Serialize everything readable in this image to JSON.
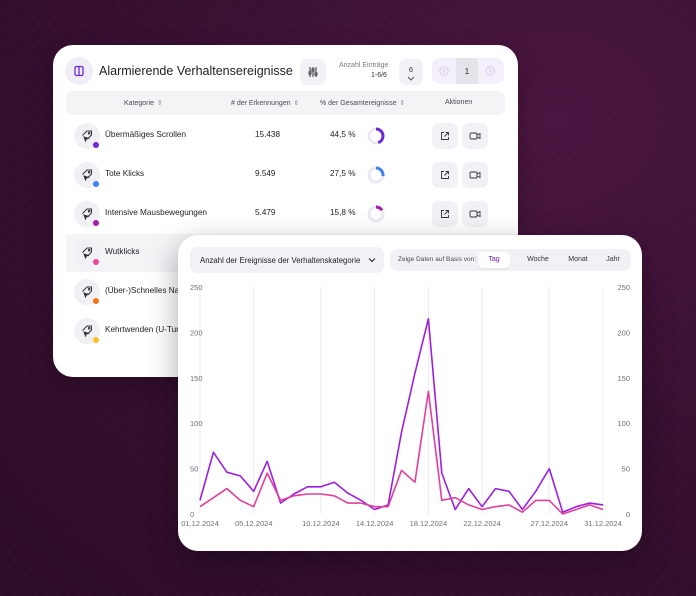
{
  "table": {
    "title": "Alarmierende Verhaltensereignisse",
    "entries_label": "Anzahl Einträge",
    "entries_range": "1-6/6",
    "page_size": "6",
    "current_page": "1",
    "columns": [
      "Kategorie",
      "# der Erkennungen",
      "% der Gesamtereignisse",
      "Aktionen"
    ],
    "rows": [
      {
        "label": "Übermäßiges Scrollen",
        "count": "15.438",
        "pct": "44,5 %",
        "ratio": 0.445,
        "color": "#6d28d9"
      },
      {
        "label": "Tote Klicks",
        "count": "9.549",
        "pct": "27,5 %",
        "ratio": 0.275,
        "color": "#3b82f6"
      },
      {
        "label": "Intensive Mausbewegungen",
        "count": "5.479",
        "pct": "15,8 %",
        "ratio": 0.158,
        "color": "#a21caf"
      },
      {
        "label": "Wutklicks",
        "count": "",
        "pct": "",
        "ratio": 0,
        "color": "#ec4899"
      },
      {
        "label": "(Über-)Schnelles Navigieren",
        "count": "",
        "pct": "",
        "ratio": 0,
        "color": "#f97316"
      },
      {
        "label": "Kehrtwenden (U-Turns)",
        "count": "",
        "pct": "",
        "ratio": 0,
        "color": "#fbbf24"
      }
    ],
    "icons": {
      "logo": "logo-icon",
      "filter": "sliders-icon",
      "row": "tag-cursor-icon",
      "open": "external-link-icon",
      "video": "video-icon"
    }
  },
  "chart_panel": {
    "dropdown_label": "Anzahl der Ereignisse der Verhaltenskategorie",
    "period_label": "Zeige Daten auf Basis von:",
    "periods": [
      "Tag",
      "Woche",
      "Monat",
      "Jahr"
    ],
    "active_period": "Tag"
  },
  "chart_data": {
    "type": "line",
    "x": [
      "01.12.2024",
      "02.12.2024",
      "03.12.2024",
      "04.12.2024",
      "05.12.2024",
      "06.12.2024",
      "07.12.2024",
      "08.12.2024",
      "09.12.2024",
      "10.12.2024",
      "11.12.2024",
      "12.12.2024",
      "13.12.2024",
      "14.12.2024",
      "15.12.2024",
      "16.12.2024",
      "17.12.2024",
      "18.12.2024",
      "19.12.2024",
      "20.12.2024",
      "21.12.2024",
      "22.12.2024",
      "23.12.2024",
      "24.12.2024",
      "25.12.2024",
      "26.12.2024",
      "27.12.2024",
      "28.12.2024",
      "29.12.2024",
      "30.12.2024",
      "31.12.2024"
    ],
    "x_tick_labels": [
      "01.12.2024",
      "05.12.2024",
      "10.12.2024",
      "14.12.2024",
      "18.12.2024",
      "22.12.2024",
      "27.12.2024",
      "31.12.2024"
    ],
    "series": [
      {
        "color": "#9b1fe0",
        "values": [
          15,
          68,
          46,
          42,
          25,
          58,
          12,
          22,
          30,
          30,
          35,
          23,
          15,
          5,
          10,
          90,
          155,
          215,
          45,
          5,
          28,
          8,
          28,
          25,
          5,
          25,
          50,
          2,
          8,
          12,
          10
        ]
      },
      {
        "color": "#e0409b",
        "values": [
          8,
          18,
          28,
          15,
          8,
          45,
          15,
          20,
          22,
          22,
          20,
          12,
          12,
          8,
          8,
          48,
          35,
          135,
          15,
          18,
          10,
          5,
          8,
          10,
          2,
          15,
          15,
          0,
          5,
          10,
          5
        ]
      }
    ],
    "ylim": [
      0,
      250
    ],
    "yticks": [
      0,
      50,
      100,
      150,
      200,
      250
    ],
    "grid": true
  }
}
